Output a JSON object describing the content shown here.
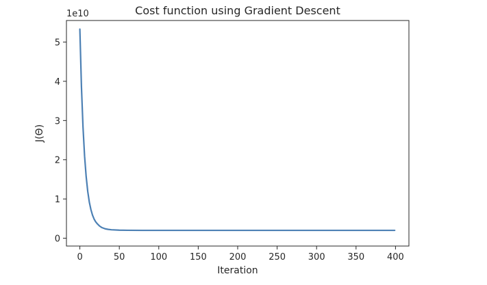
{
  "chart_data": {
    "type": "line",
    "title": "Cost function using Gradient Descent",
    "xlabel": "Iteration",
    "ylabel": "J(Θ)",
    "offset_label": "1e10",
    "y_scale": 10000000000,
    "xlim": [
      -17,
      417
    ],
    "ylim": [
      -0.2,
      5.55
    ],
    "xticks": [
      0,
      50,
      100,
      150,
      200,
      250,
      300,
      350,
      400
    ],
    "xtick_labels": [
      "0",
      "50",
      "100",
      "150",
      "200",
      "250",
      "300",
      "350",
      "400"
    ],
    "yticks": [
      0,
      1,
      2,
      3,
      4,
      5
    ],
    "ytick_labels": [
      "0",
      "1",
      "2",
      "3",
      "4",
      "5"
    ],
    "grid": false,
    "legend": "none",
    "series": [
      {
        "color": "#4c80b4",
        "x": [
          0,
          2,
          4,
          6,
          8,
          10,
          12,
          14,
          16,
          18,
          20,
          22,
          25,
          28,
          32,
          36,
          40,
          50,
          60,
          80,
          100,
          150,
          200,
          250,
          300,
          350,
          399
        ],
        "y": [
          5.33,
          3.87,
          2.83,
          2.09,
          1.57,
          1.19,
          0.92,
          0.73,
          0.59,
          0.49,
          0.42,
          0.37,
          0.31,
          0.27,
          0.24,
          0.225,
          0.215,
          0.205,
          0.202,
          0.2,
          0.2,
          0.2,
          0.2,
          0.2,
          0.2,
          0.2,
          0.2
        ]
      }
    ]
  }
}
